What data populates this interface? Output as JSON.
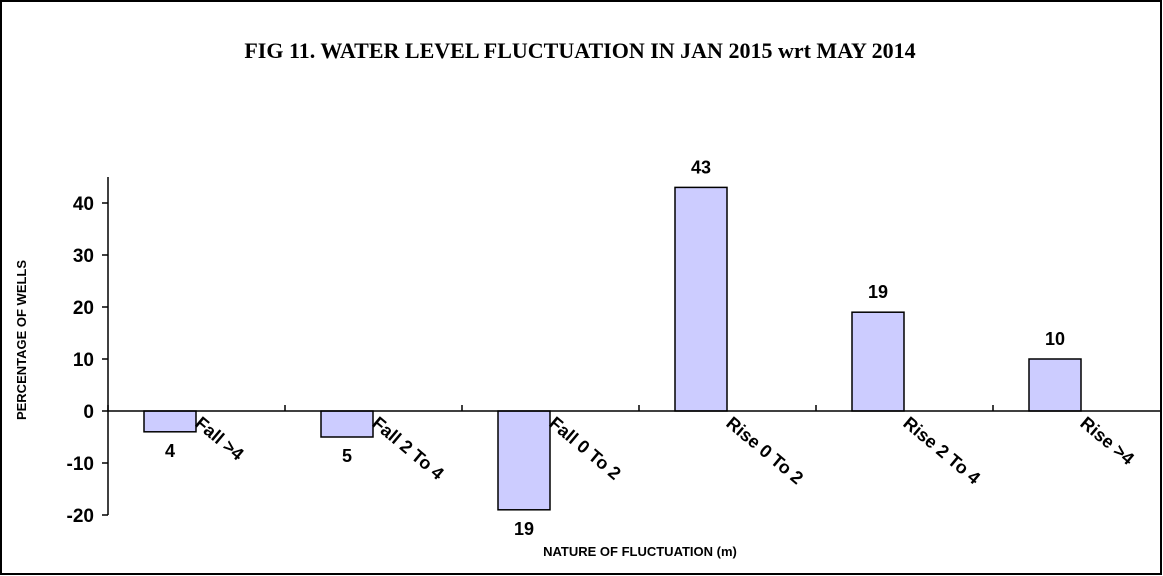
{
  "chart_data": {
    "type": "bar",
    "title": "FIG 11. WATER LEVEL FLUCTUATION IN JAN 2015 wrt MAY 2014",
    "x_label": "NATURE OF FLUCTUATION (m)",
    "y_label": "PERCENTAGE OF WELLS",
    "categories": [
      "Fall >4",
      "Fall 2 To 4",
      "Fall 0 To 2",
      "Rise 0 To 2",
      "Rise 2 To 4",
      "Rise >4"
    ],
    "values": [
      -4,
      -5,
      -19,
      43,
      19,
      10
    ],
    "value_labels": [
      "4",
      "5",
      "19",
      "43",
      "19",
      "10"
    ],
    "color": "#ccccff",
    "ylim": [
      -20,
      45
    ],
    "yticks": [
      -20,
      -10,
      0,
      10,
      20,
      30,
      40
    ]
  }
}
